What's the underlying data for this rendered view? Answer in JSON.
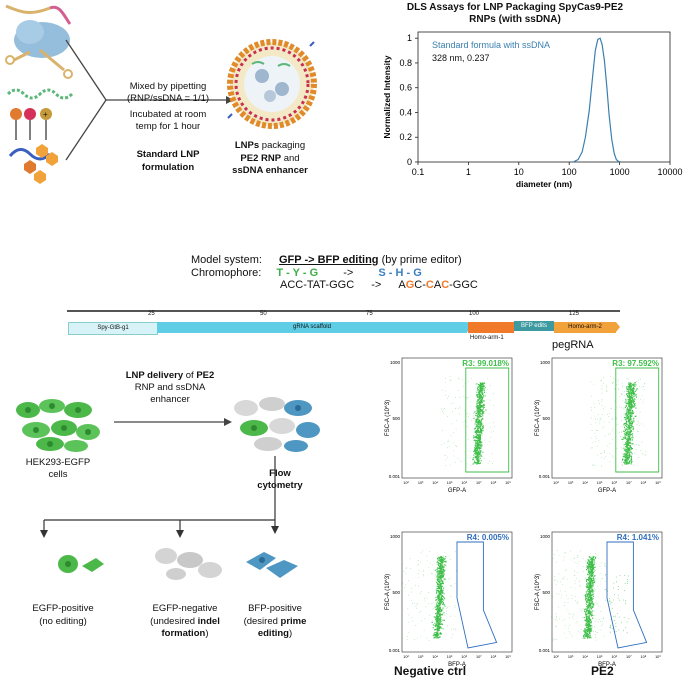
{
  "panel_a": {
    "mixed_line1": "Mixed by pipetting",
    "mixed_line2": "(RNP/ssDNA = 1/1)",
    "incubated_line1": "Incubated at room",
    "incubated_line2": "temp for 1 hour",
    "lnp_standard_line1": "Standard LNP",
    "lnp_standard_line2": "formulation",
    "lnp_result_line1_pre": "LNPs",
    "lnp_result_line1_post": " packaging",
    "lnp_result_line2_pre": "PE2 RNP",
    "lnp_result_line2_post": " and",
    "lnp_result_line3": "ssDNA enhancer",
    "plus_sign": "+"
  },
  "dls_chart": {
    "title_line1": "DLS Assays for LNP Packaging SpyCas9-PE2",
    "title_line2": "RNPs (with ssDNA)",
    "ylabel": "Normalized Intensity",
    "xlabel": "diameter (nm)",
    "legend_name": "Standard formula with ssDNA",
    "legend_stats": "328 nm, 0.237"
  },
  "chart_data": {
    "type": "line",
    "title": "DLS Assays for LNP Packaging SpyCas9-PE2 RNPs (with ssDNA)",
    "xlabel": "diameter (nm)",
    "ylabel": "Normalized Intensity",
    "x_scale": "log",
    "xlim": [
      0.1,
      10000
    ],
    "ylim": [
      0,
      1.05
    ],
    "x_ticks": [
      "0.1",
      "1",
      "10",
      "100",
      "1000",
      "10000"
    ],
    "y_ticks": [
      "0",
      "0.2",
      "0.4",
      "0.6",
      "0.8",
      "1"
    ],
    "legend_placement": "top-left",
    "grid": false,
    "series": [
      {
        "name": "Standard formula with ssDNA",
        "annotation": "328 nm, 0.237",
        "color": "#3b7fb0",
        "x": [
          120,
          150,
          180,
          210,
          250,
          290,
          330,
          370,
          410,
          450,
          500,
          560,
          620,
          700,
          780,
          860,
          950,
          1050
        ],
        "y": [
          0,
          0.02,
          0.08,
          0.2,
          0.42,
          0.68,
          0.9,
          0.99,
          1.0,
          0.95,
          0.82,
          0.6,
          0.38,
          0.18,
          0.07,
          0.02,
          0.005,
          0
        ]
      }
    ]
  },
  "model_system": {
    "label1": "Model system:",
    "value1": "GFP -> BFP editing",
    "value1_suffix": " (by prime editor)",
    "label2": "Chromophore:",
    "chromo_from": "T - Y - G",
    "chromo_arrow": "->",
    "chromo_to": "S - H - G",
    "seq_from": "ACC-TAT-GGC",
    "seq_arrow": "->",
    "seq_to_a": "A",
    "seq_to_g": "G",
    "seq_to_mid": "C-",
    "seq_to_c1": "C",
    "seq_to_a2": "A",
    "seq_to_c2": "C",
    "seq_to_end": "-GGC"
  },
  "pegrna_map": {
    "ticks": [
      "25",
      "50",
      "75",
      "100",
      "125"
    ],
    "seg_spacer": "Spy-GtB-g1",
    "seg_scaffold": "gRNA scaffold",
    "seg_bfp": "BFP edits",
    "seg_arm2": "Homo-arm-2",
    "seg_arm1": "Homo-arm-1",
    "name": "pegRNA",
    "colors": {
      "spacer": "#d8f3f7",
      "scaffold": "#5fcde6",
      "arm1": "#f07a2a",
      "bfp": "#3e9aa1",
      "arm2": "#f2a23a"
    }
  },
  "panel_c": {
    "lnp_delivery_pre": "LNP delivery",
    "lnp_delivery_mid": " of ",
    "lnp_delivery_post": "PE2",
    "lnp_delivery_line2": "RNP and ssDNA",
    "lnp_delivery_line3": "enhancer",
    "hek_line1": "HEK293-EGFP",
    "hek_line2": "cells",
    "flow_line1": "Flow",
    "flow_line2": "cytometry",
    "out1_line1": "EGFP-positive",
    "out1_line2": "(no editing)",
    "out2_line1": "EGFP-negative",
    "out2_line2_pre": "(undesired ",
    "out2_line2_bold": "indel",
    "out2_line3_bold": "formation",
    "out2_line3_post": ")",
    "out3_line1": "BFP-positive",
    "out3_line2_pre": "(desired ",
    "out3_line2_bold": "prime",
    "out3_line3_bold": "editing",
    "out3_line3_post": ")"
  },
  "flow": {
    "ylabel": "FSC-A (10^3)",
    "y_ticks": [
      "1000",
      "500",
      "0.001"
    ],
    "x_ticks": [
      "10²",
      "10³",
      "10⁴",
      "10⁵",
      "10⁶",
      "10⁷",
      "10⁸",
      "10⁹"
    ],
    "plots": [
      {
        "gate": "R3: 99.018%",
        "xlabel": "GFP-A"
      },
      {
        "gate": "R3: 97.592%",
        "xlabel": "GFP-A"
      },
      {
        "gate": "R4: 0.005%",
        "xlabel": "BFP-A"
      },
      {
        "gate": "R4: 1.041%",
        "xlabel": "BFP-A"
      }
    ],
    "col_label_neg": "Negative ctrl",
    "col_label_pe2": "PE2",
    "colors": {
      "dots": "#3fbf4a",
      "gate_green": "#3fbf4a",
      "gate_blue": "#2f6fbf"
    }
  }
}
